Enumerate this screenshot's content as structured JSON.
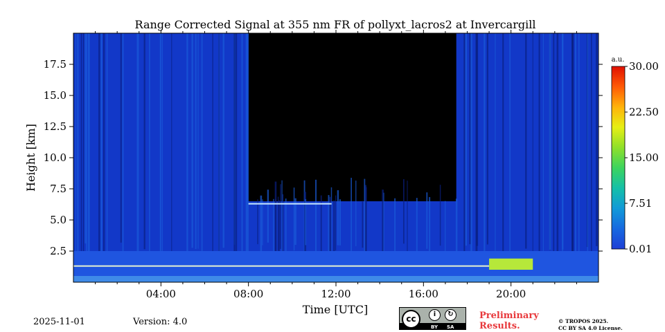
{
  "chart_data": {
    "type": "heatmap",
    "title": "Range Corrected Signal at 355 nm FR of pollyxt_lacros2 at Invercargill",
    "xlabel": "Time [UTC]",
    "ylabel": "Height [km]",
    "xlim": [
      0,
      24
    ],
    "ylim": [
      0,
      20
    ],
    "x_ticks": [
      {
        "value": 4,
        "label": "04:00"
      },
      {
        "value": 8,
        "label": "08:00"
      },
      {
        "value": 12,
        "label": "12:00"
      },
      {
        "value": 16,
        "label": "16:00"
      },
      {
        "value": 20,
        "label": "20:00"
      }
    ],
    "y_ticks": [
      {
        "value": 2.5,
        "label": "2.5"
      },
      {
        "value": 5.0,
        "label": "5.0"
      },
      {
        "value": 7.5,
        "label": "7.5"
      },
      {
        "value": 10.0,
        "label": "10.0"
      },
      {
        "value": 12.5,
        "label": "12.5"
      },
      {
        "value": 15.0,
        "label": "15.0"
      },
      {
        "value": 17.5,
        "label": "17.5"
      }
    ],
    "colorbar": {
      "unit": "a.u.",
      "range": [
        0.01,
        30.0
      ],
      "ticks": [
        {
          "value": 0.01,
          "label": "0.01"
        },
        {
          "value": 7.51,
          "label": "7.51"
        },
        {
          "value": 15.0,
          "label": "15.00"
        },
        {
          "value": 22.5,
          "label": "22.50"
        },
        {
          "value": 30.0,
          "label": "30.00"
        }
      ],
      "colors": [
        "#1e3fd6",
        "#1769e0",
        "#119ad8",
        "#15c0a8",
        "#3cd45e",
        "#8fe02a",
        "#e6ef14",
        "#ffb30a",
        "#ff5a06",
        "#e01000"
      ]
    },
    "features": {
      "low_signal_gap_hours": [
        8.0,
        17.5
      ],
      "low_signal_gap_above_km": 6.5,
      "boundary_layer_km": 1.3,
      "elevated_layer_km": 6.3,
      "elevated_layer_hours": [
        8.0,
        11.8
      ],
      "strong_return_hours": [
        19.0,
        21.0
      ]
    }
  },
  "footer": {
    "date": "2025-11-01",
    "version": "Version: 4.0",
    "license_badge": {
      "cc": "cc",
      "by": "BY",
      "sa": "SA"
    },
    "preliminary_line1": "Preliminary",
    "preliminary_line2": "Results.",
    "copyright_line1": "© TROPOS 2025.",
    "copyright_line2": "CC BY SA 4.0 License."
  }
}
